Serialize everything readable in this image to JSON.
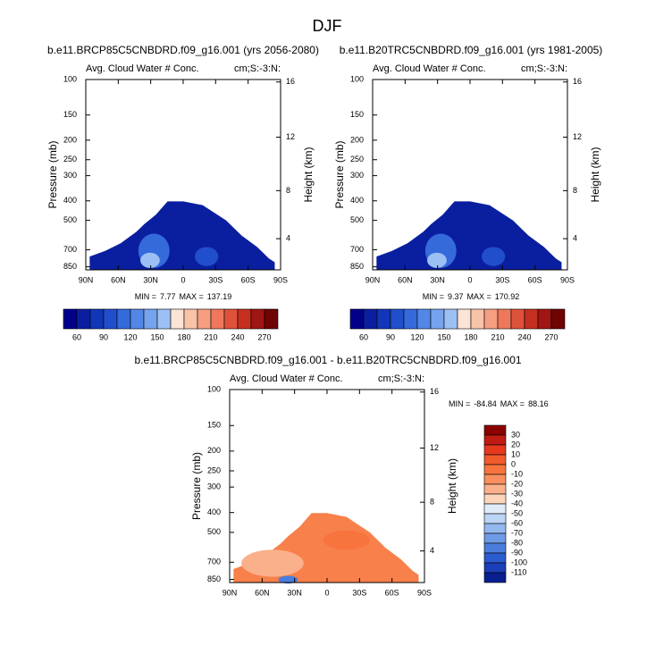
{
  "chart_data": {
    "type": "contour",
    "title": "DJF",
    "panels": [
      {
        "title": "b.e11.BRCP85C5CNBDRD.f09_g16.001 (yrs 2056-2080)",
        "left_string": "Avg. Cloud Water # Conc.",
        "right_string": "cm;S:-3:N:",
        "y_label": "Pressure (mb)",
        "y2_label": "Height (km)",
        "ylim": [
          100,
          880
        ],
        "log_y": true,
        "yticks": [
          100,
          150,
          200,
          250,
          300,
          400,
          500,
          700,
          850
        ],
        "y2ticks": [
          4,
          8,
          12,
          16
        ],
        "xlim": [
          90,
          -90
        ],
        "xticks": [
          {
            "value": 90,
            "label": "90N"
          },
          {
            "value": 60,
            "label": "60N"
          },
          {
            "value": 30,
            "label": "30N"
          },
          0,
          {
            "value": -30,
            "label": "30S"
          },
          {
            "value": -60,
            "label": "60S"
          },
          {
            "value": -90,
            "label": "90S"
          }
        ],
        "min_label": "MIN =",
        "min": 7.77,
        "max_label": "MAX =",
        "max": 137.19,
        "colorbar": {
          "orientation": "horizontal",
          "levels": [
            60,
            90,
            120,
            150,
            180,
            210,
            240,
            270
          ],
          "colors": [
            "#00008b",
            "#0a1f9f",
            "#1236b8",
            "#214fcc",
            "#356adb",
            "#5287e6",
            "#75a3ee",
            "#9dc0f4",
            "#fbe3d6",
            "#f9c3a8",
            "#f59e80",
            "#ee775c",
            "#de513b",
            "#c42f20",
            "#a01612",
            "#700404"
          ]
        }
      },
      {
        "title": "b.e11.B20TRC5CNBDRD.f09_g16.001 (yrs 1981-2005)",
        "left_string": "Avg. Cloud Water # Conc.",
        "right_string": "cm;S:-3:N:",
        "y_label": "Pressure (mb)",
        "y2_label": "Height (km)",
        "ylim": [
          100,
          880
        ],
        "log_y": true,
        "yticks": [
          100,
          150,
          200,
          250,
          300,
          400,
          500,
          700,
          850
        ],
        "y2ticks": [
          4,
          8,
          12,
          16
        ],
        "xlim": [
          90,
          -90
        ],
        "xticks": [
          {
            "value": 90,
            "label": "90N"
          },
          {
            "value": 60,
            "label": "60N"
          },
          {
            "value": 30,
            "label": "30N"
          },
          0,
          {
            "value": -30,
            "label": "30S"
          },
          {
            "value": -60,
            "label": "60S"
          },
          {
            "value": -90,
            "label": "90S"
          }
        ],
        "min_label": "MIN =",
        "min": 9.37,
        "max_label": "MAX =",
        "max": 170.92,
        "colorbar": {
          "orientation": "horizontal",
          "levels": [
            60,
            90,
            120,
            150,
            180,
            210,
            240,
            270
          ],
          "colors": [
            "#00008b",
            "#0a1f9f",
            "#1236b8",
            "#214fcc",
            "#356adb",
            "#5287e6",
            "#75a3ee",
            "#9dc0f4",
            "#fbe3d6",
            "#f9c3a8",
            "#f59e80",
            "#ee775c",
            "#de513b",
            "#c42f20",
            "#a01612",
            "#700404"
          ]
        }
      },
      {
        "title": "b.e11.BRCP85C5CNBDRD.f09_g16.001 - b.e11.B20TRC5CNBDRD.f09_g16.001",
        "left_string": "Avg. Cloud Water # Conc.",
        "right_string": "cm;S:-3:N:",
        "y_label": "Pressure (mb)",
        "y2_label": "Height (km)",
        "ylim": [
          100,
          880
        ],
        "log_y": true,
        "yticks": [
          100,
          150,
          200,
          250,
          300,
          400,
          500,
          700,
          850
        ],
        "y2ticks": [
          4,
          8,
          12,
          16
        ],
        "xlim": [
          90,
          -90
        ],
        "xticks": [
          {
            "value": 90,
            "label": "90N"
          },
          {
            "value": 60,
            "label": "60N"
          },
          {
            "value": 30,
            "label": "30N"
          },
          0,
          {
            "value": -30,
            "label": "30S"
          },
          {
            "value": -60,
            "label": "60S"
          },
          {
            "value": -90,
            "label": "90S"
          }
        ],
        "min_label": "MIN =",
        "min": -84.84,
        "max_label": "MAX =",
        "max": 88.16,
        "colorbar": {
          "orientation": "vertical",
          "levels": [
            30,
            20,
            10,
            0,
            -10,
            -20,
            -30,
            -40,
            -50,
            -60,
            -70,
            -80,
            -90,
            -100,
            -110
          ],
          "colors": [
            "#8b0000",
            "#c01b12",
            "#e5391e",
            "#f25a2c",
            "#f7743f",
            "#f98f5f",
            "#fbb08c",
            "#fdd5bd",
            "#e0ecfa",
            "#bcd4f5",
            "#94b8ee",
            "#6e9be6",
            "#4a7ddd",
            "#2b5ccf",
            "#1a3fb8",
            "#0a1f8f"
          ]
        }
      }
    ]
  }
}
